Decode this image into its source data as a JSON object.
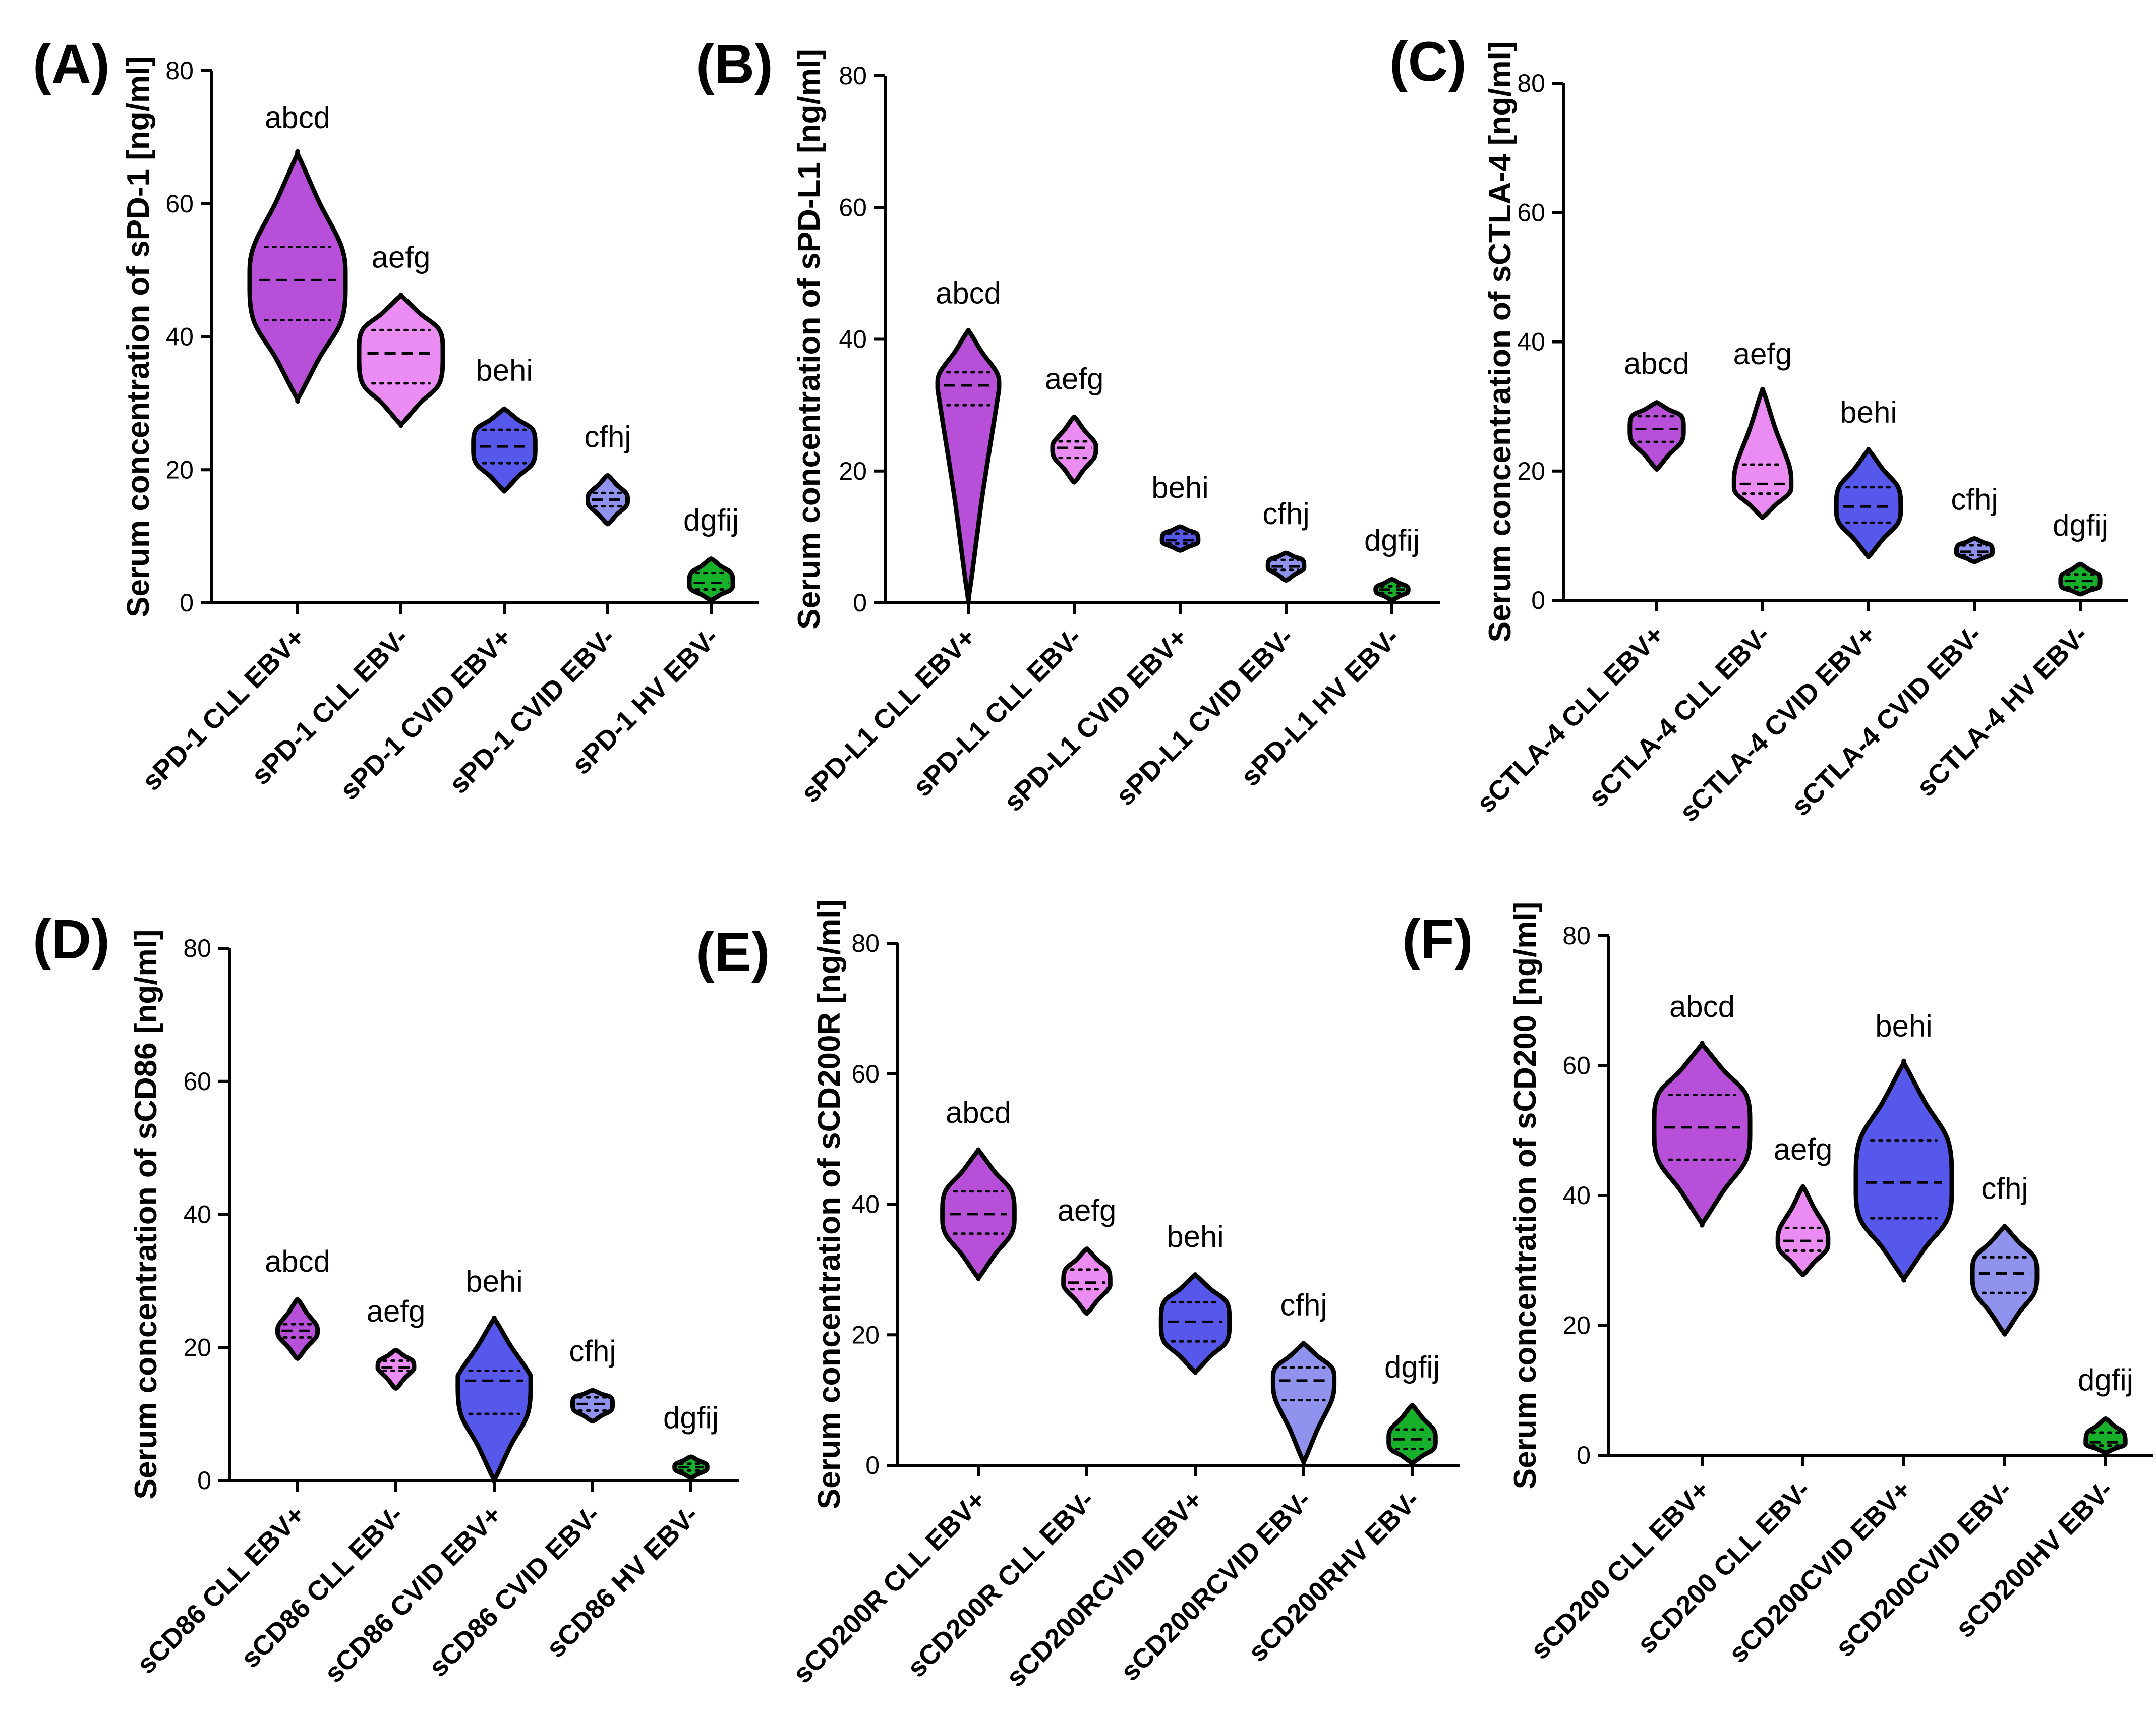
{
  "chart_data": [
    {
      "type": "violin",
      "panel": "(A)",
      "ylabel": "Serum concentration of sPD-1 [ng/ml]",
      "ylim": [
        0,
        80
      ],
      "yticks": [
        "0",
        "20",
        "40",
        "60",
        "80"
      ],
      "categories": [
        "sPD-1 CLL EBV+",
        "sPD-1 CLL EBV-",
        "sPD-1 CVID EBV+",
        "sPD-1 CVID EBV-",
        "sPD-1 HV EBV-"
      ],
      "significance": [
        "abcd",
        "aefg",
        "behi",
        "cfhj",
        "dgfij"
      ],
      "colors": [
        "#b84fd8",
        "#ea8cf2",
        "#5558ea",
        "#8f93ee",
        "#16b02a"
      ],
      "min": [
        31,
        27,
        17,
        12,
        0.5
      ],
      "q1": [
        42.5,
        33,
        21,
        14.5,
        2
      ],
      "median": [
        48.5,
        37.5,
        23.5,
        15.5,
        3
      ],
      "q3": [
        53.5,
        41,
        26,
        16.5,
        4.5
      ],
      "max": [
        67,
        46,
        29,
        19,
        6.5
      ]
    },
    {
      "type": "violin",
      "panel": "(B)",
      "ylabel": "Serum concentration of sPD-L1 [ng/ml]",
      "ylim": [
        0,
        80
      ],
      "yticks": [
        "0",
        "20",
        "40",
        "60",
        "80"
      ],
      "categories": [
        "sPD-L1 CLL EBV+",
        "sPD-L1 CLL EBV-",
        "sPD-L1 CVID EBV+",
        "sPD-L1 CVID EBV-",
        "sPD-L1 HV EBV-"
      ],
      "significance": [
        "abcd",
        "aefg",
        "behi",
        "cfhj",
        "dgfij"
      ],
      "colors": [
        "#b84fd8",
        "#ea8cf2",
        "#5558ea",
        "#8f93ee",
        "#16b02a"
      ],
      "min": [
        2,
        18.5,
        8,
        3.5,
        0.5
      ],
      "q1": [
        30,
        22,
        9,
        5,
        1.5
      ],
      "median": [
        33,
        23.5,
        9.5,
        5.5,
        2
      ],
      "q3": [
        35,
        24.5,
        10.5,
        6.5,
        2.5
      ],
      "max": [
        41,
        28,
        11.5,
        7.5,
        3.5
      ]
    },
    {
      "type": "violin",
      "panel": "(C)",
      "ylabel": "Serum concentration of sCTLA-4 [ng/ml]",
      "ylim": [
        0,
        80
      ],
      "yticks": [
        "0",
        "20",
        "40",
        "60",
        "80"
      ],
      "categories": [
        "sCTLA-4 CLL EBV+",
        "sCTLA-4 CLL EBV-",
        "sCTLA-4 CVID EBV+",
        "sCTLA-4 CVID EBV-",
        "sCTLA-4 HV EBV-"
      ],
      "significance": [
        "abcd",
        "aefg",
        "behi",
        "cfhj",
        "dgfij"
      ],
      "colors": [
        "#b84fd8",
        "#ea8cf2",
        "#5558ea",
        "#8f93ee",
        "#16b02a"
      ],
      "min": [
        20.5,
        13,
        7,
        6,
        1
      ],
      "q1": [
        24.5,
        16.5,
        12,
        7,
        2
      ],
      "median": [
        26.5,
        18,
        14.5,
        7.5,
        3
      ],
      "q3": [
        28.5,
        21,
        17.5,
        8.5,
        4
      ],
      "max": [
        30.5,
        32,
        23,
        9.5,
        5.5
      ]
    },
    {
      "type": "violin",
      "panel": "(D)",
      "ylabel": "Serum concentration of sCD86 [ng/ml]",
      "ylim": [
        0,
        80
      ],
      "yticks": [
        "0",
        "20",
        "40",
        "60",
        "80"
      ],
      "categories": [
        "sCD86 CLL EBV+",
        "sCD86 CLL EBV-",
        "sCD86 CVID EBV+",
        "sCD86 CVID EBV-",
        "sCD86 HV EBV-"
      ],
      "significance": [
        "abcd",
        "aefg",
        "behi",
        "cfhj",
        "dgfij"
      ],
      "colors": [
        "#b84fd8",
        "#ea8cf2",
        "#5558ea",
        "#8f93ee",
        "#16b02a"
      ],
      "min": [
        18.5,
        14,
        0.5,
        9,
        0.5
      ],
      "q1": [
        21.5,
        16.5,
        10,
        10.5,
        1.5
      ],
      "median": [
        22.5,
        17,
        15,
        11.5,
        2
      ],
      "q3": [
        23.5,
        18,
        16.5,
        12.5,
        2.5
      ],
      "max": [
        27,
        19.5,
        24,
        13.5,
        3.5
      ]
    },
    {
      "type": "violin",
      "panel": "(E)",
      "ylabel": "Serum concentration of sCD200R [ng/ml]",
      "ylim": [
        0,
        80
      ],
      "yticks": [
        "0",
        "20",
        "40",
        "60",
        "80"
      ],
      "categories": [
        "sCD200R CLL EBV+",
        "sCD200R CLL EBV-",
        "sCD200RCVID EBV+",
        "sCD200RCVID EBV-",
        "sCD200RHV EBV-"
      ],
      "significance": [
        "abcd",
        "aefg",
        "behi",
        "cfhj",
        "dgfij"
      ],
      "colors": [
        "#b84fd8",
        "#ea8cf2",
        "#5558ea",
        "#8f93ee",
        "#16b02a"
      ],
      "min": [
        29,
        23.5,
        14.5,
        1,
        0.5
      ],
      "q1": [
        35.5,
        27,
        19,
        10,
        2.5
      ],
      "median": [
        38.5,
        28,
        22,
        13,
        4
      ],
      "q3": [
        42,
        30,
        25,
        15,
        5.5
      ],
      "max": [
        48,
        33,
        29,
        18.5,
        9
      ]
    },
    {
      "type": "violin",
      "panel": "(F)",
      "ylabel": "Serum concentration of sCD200 [ng/ml]",
      "ylim": [
        0,
        80
      ],
      "yticks": [
        "0",
        "20",
        "40",
        "60",
        "80"
      ],
      "categories": [
        "sCD200 CLL EBV+",
        "sCD200 CLL EBV-",
        "sCD200CVID EBV+",
        "sCD200CVID EBV-",
        "sCD200HV EBV-"
      ],
      "significance": [
        "abcd",
        "aefg",
        "behi",
        "cfhj",
        "dgfij"
      ],
      "colors": [
        "#b84fd8",
        "#ea8cf2",
        "#5558ea",
        "#8f93ee",
        "#16b02a"
      ],
      "min": [
        36,
        28,
        27.5,
        19,
        0.5
      ],
      "q1": [
        45.5,
        31.5,
        36.5,
        25,
        1.5
      ],
      "median": [
        50.5,
        33,
        42,
        28,
        2
      ],
      "q3": [
        55.5,
        35,
        48.5,
        30.5,
        3.5
      ],
      "max": [
        63,
        41,
        60,
        35,
        5.5
      ]
    }
  ]
}
